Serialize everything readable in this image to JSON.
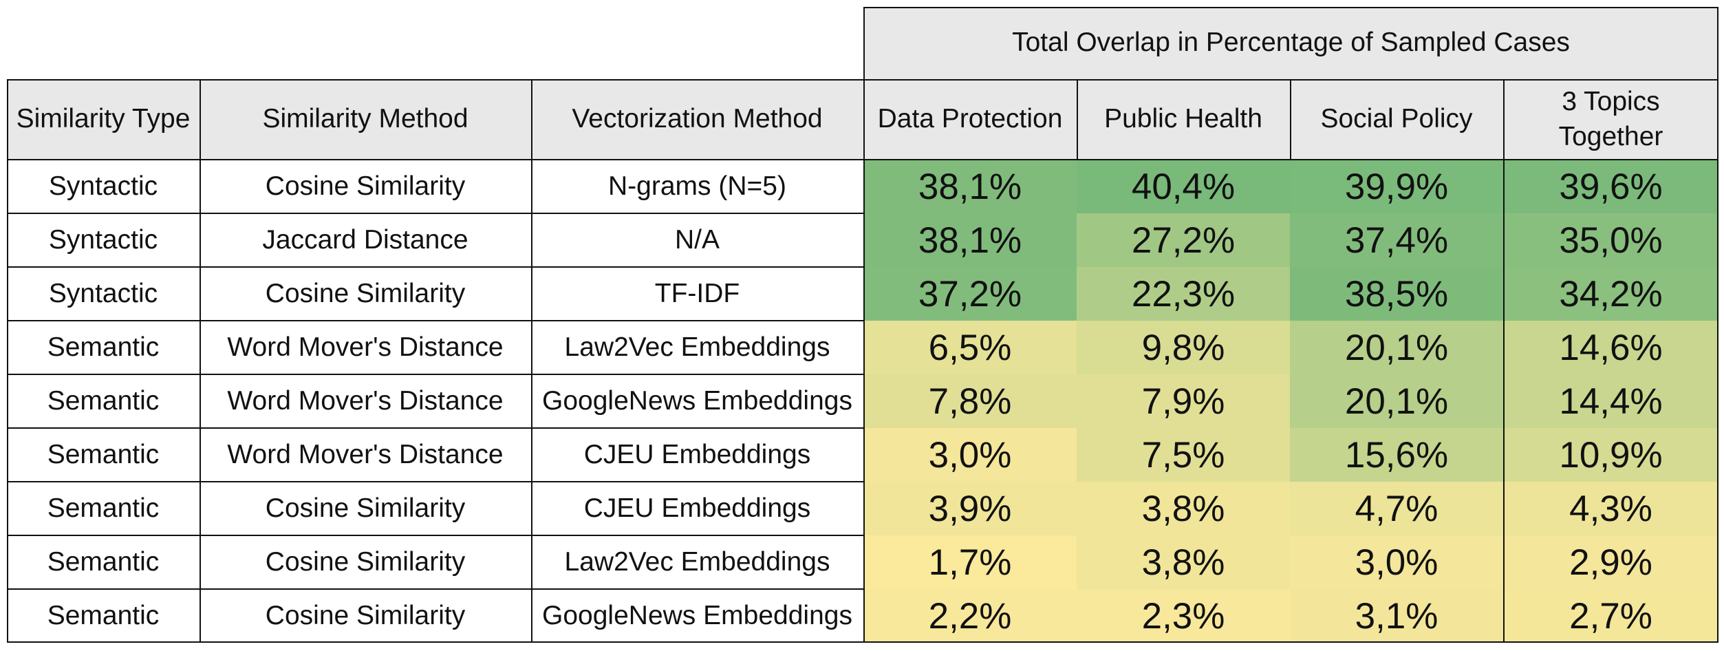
{
  "group_header": "Total Overlap in Percentage of Sampled Cases",
  "columns": [
    "Similarity Type",
    "Similarity Method",
    "Vectorization Method",
    "Data Protection",
    "Public Health",
    "Social Policy",
    "3 Topics Together"
  ],
  "rows": [
    {
      "type": "Syntactic",
      "method": "Cosine Similarity",
      "vectorization": "N-grams (N=5)",
      "values": [
        "38,1%",
        "40,4%",
        "39,9%",
        "39,6%"
      ]
    },
    {
      "type": "Syntactic",
      "method": "Jaccard Distance",
      "vectorization": "N/A",
      "values": [
        "38,1%",
        "27,2%",
        "37,4%",
        "35,0%"
      ]
    },
    {
      "type": "Syntactic",
      "method": "Cosine Similarity",
      "vectorization": "TF-IDF",
      "values": [
        "37,2%",
        "22,3%",
        "38,5%",
        "34,2%"
      ]
    },
    {
      "type": "Semantic",
      "method": "Word Mover's Distance",
      "vectorization": "Law2Vec Embeddings",
      "values": [
        "6,5%",
        "9,8%",
        "20,1%",
        "14,6%"
      ]
    },
    {
      "type": "Semantic",
      "method": "Word Mover's Distance",
      "vectorization": "GoogleNews Embeddings",
      "values": [
        "7,8%",
        "7,9%",
        "20,1%",
        "14,4%"
      ]
    },
    {
      "type": "Semantic",
      "method": "Word Mover's Distance",
      "vectorization": "CJEU Embeddings",
      "values": [
        "3,0%",
        "7,5%",
        "15,6%",
        "10,9%"
      ]
    },
    {
      "type": "Semantic",
      "method": "Cosine Similarity",
      "vectorization": "CJEU Embeddings",
      "values": [
        "3,9%",
        "3,8%",
        "4,7%",
        "4,3%"
      ]
    },
    {
      "type": "Semantic",
      "method": "Cosine Similarity",
      "vectorization": "Law2Vec Embeddings",
      "values": [
        "1,7%",
        "3,8%",
        "3,0%",
        "2,9%"
      ]
    },
    {
      "type": "Semantic",
      "method": "Cosine Similarity",
      "vectorization": "GoogleNews Embeddings",
      "values": [
        "2,2%",
        "2,3%",
        "3,1%",
        "2,7%"
      ]
    }
  ],
  "color_scale": {
    "low": "#fbe99c",
    "high": "#79b97a"
  }
}
